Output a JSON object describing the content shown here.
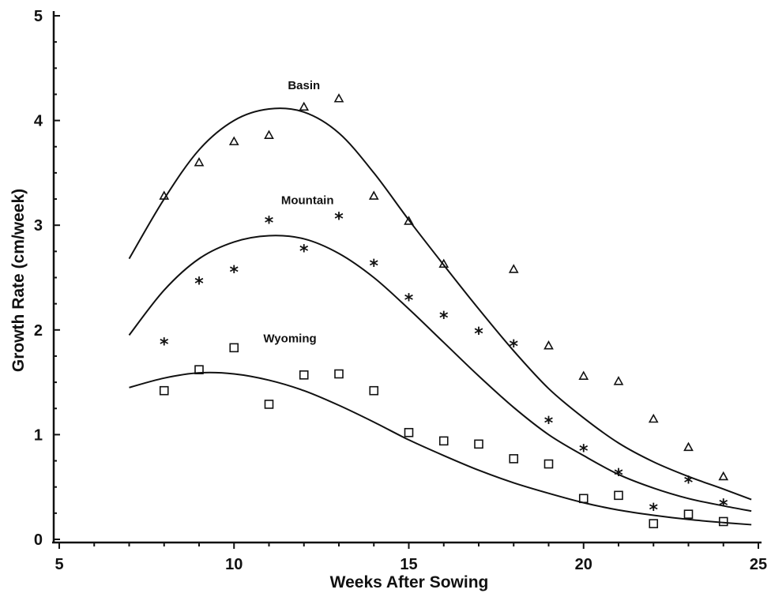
{
  "chart_data": {
    "type": "scatter",
    "title": "",
    "xlabel": "Weeks After Sowing",
    "ylabel": "Growth Rate (cm/week)",
    "xlim": [
      5,
      25
    ],
    "ylim": [
      0,
      5
    ],
    "x_ticks": [
      "5",
      "10",
      "15",
      "20",
      "25"
    ],
    "y_ticks": [
      "0",
      "1",
      "2",
      "3",
      "4",
      "5"
    ],
    "grid": false,
    "series": [
      {
        "name": "Basin",
        "marker": "triangle",
        "points": [
          [
            8,
            3.28
          ],
          [
            9,
            3.6
          ],
          [
            10,
            3.8
          ],
          [
            11,
            3.86
          ],
          [
            12,
            4.13
          ],
          [
            13,
            4.21
          ],
          [
            14,
            3.28
          ],
          [
            15,
            3.04
          ],
          [
            16,
            2.63
          ],
          [
            18,
            2.58
          ],
          [
            19,
            1.85
          ],
          [
            20,
            1.56
          ],
          [
            21,
            1.51
          ],
          [
            22,
            1.15
          ],
          [
            23,
            0.88
          ],
          [
            24,
            0.6
          ]
        ],
        "fit_curve": [
          [
            7,
            2.68
          ],
          [
            8,
            3.25
          ],
          [
            9,
            3.72
          ],
          [
            10,
            4.0
          ],
          [
            11,
            4.11
          ],
          [
            12,
            4.08
          ],
          [
            13,
            3.88
          ],
          [
            14,
            3.5
          ],
          [
            15,
            3.05
          ],
          [
            16,
            2.62
          ],
          [
            17,
            2.2
          ],
          [
            18,
            1.8
          ],
          [
            19,
            1.44
          ],
          [
            20,
            1.16
          ],
          [
            21,
            0.92
          ],
          [
            22,
            0.74
          ],
          [
            23,
            0.6
          ],
          [
            24,
            0.48
          ],
          [
            24.8,
            0.38
          ]
        ]
      },
      {
        "name": "Mountain",
        "marker": "star",
        "points": [
          [
            8,
            1.89
          ],
          [
            9,
            2.47
          ],
          [
            10,
            2.58
          ],
          [
            11,
            3.05
          ],
          [
            12,
            2.78
          ],
          [
            13,
            3.09
          ],
          [
            14,
            2.64
          ],
          [
            15,
            2.31
          ],
          [
            16,
            2.14
          ],
          [
            17,
            1.99
          ],
          [
            18,
            1.87
          ],
          [
            19,
            1.14
          ],
          [
            20,
            0.87
          ],
          [
            21,
            0.64
          ],
          [
            22,
            0.31
          ],
          [
            23,
            0.57
          ],
          [
            24,
            0.35
          ]
        ],
        "fit_curve": [
          [
            7,
            1.95
          ],
          [
            8,
            2.38
          ],
          [
            9,
            2.68
          ],
          [
            10,
            2.84
          ],
          [
            11,
            2.9
          ],
          [
            12,
            2.87
          ],
          [
            13,
            2.73
          ],
          [
            14,
            2.5
          ],
          [
            15,
            2.2
          ],
          [
            16,
            1.88
          ],
          [
            17,
            1.56
          ],
          [
            18,
            1.26
          ],
          [
            19,
            1.0
          ],
          [
            20,
            0.8
          ],
          [
            21,
            0.62
          ],
          [
            22,
            0.49
          ],
          [
            23,
            0.39
          ],
          [
            24,
            0.32
          ],
          [
            24.8,
            0.27
          ]
        ]
      },
      {
        "name": "Wyoming",
        "marker": "square",
        "points": [
          [
            8,
            1.42
          ],
          [
            9,
            1.62
          ],
          [
            10,
            1.83
          ],
          [
            11,
            1.29
          ],
          [
            12,
            1.57
          ],
          [
            13,
            1.58
          ],
          [
            14,
            1.42
          ],
          [
            15,
            1.02
          ],
          [
            16,
            0.94
          ],
          [
            17,
            0.91
          ],
          [
            18,
            0.77
          ],
          [
            19,
            0.72
          ],
          [
            20,
            0.39
          ],
          [
            21,
            0.42
          ],
          [
            22,
            0.15
          ],
          [
            23,
            0.24
          ],
          [
            24,
            0.17
          ]
        ],
        "fit_curve": [
          [
            7,
            1.45
          ],
          [
            8,
            1.54
          ],
          [
            9,
            1.59
          ],
          [
            10,
            1.58
          ],
          [
            11,
            1.52
          ],
          [
            12,
            1.42
          ],
          [
            13,
            1.28
          ],
          [
            14,
            1.12
          ],
          [
            15,
            0.95
          ],
          [
            16,
            0.8
          ],
          [
            17,
            0.66
          ],
          [
            18,
            0.54
          ],
          [
            19,
            0.44
          ],
          [
            20,
            0.35
          ],
          [
            21,
            0.28
          ],
          [
            22,
            0.23
          ],
          [
            23,
            0.19
          ],
          [
            24,
            0.16
          ],
          [
            24.8,
            0.14
          ]
        ]
      }
    ],
    "series_labels": [
      {
        "text": "Basin",
        "x": 12.0,
        "y": 4.3
      },
      {
        "text": "Mountain",
        "x": 12.1,
        "y": 3.2
      },
      {
        "text": "Wyoming",
        "x": 11.6,
        "y": 1.88
      }
    ]
  }
}
